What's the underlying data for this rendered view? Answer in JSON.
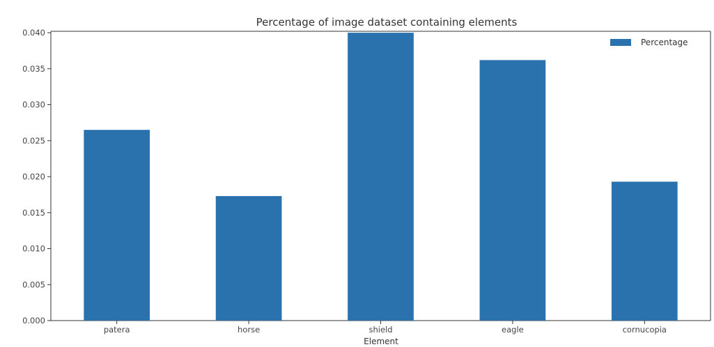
{
  "chart_data": {
    "type": "bar",
    "title": "Percentage of image dataset containing elements",
    "xlabel": "Element",
    "ylabel": "",
    "categories": [
      "patera",
      "horse",
      "shield",
      "eagle",
      "cornucopia"
    ],
    "series": [
      {
        "name": "Percentage",
        "values": [
          0.0265,
          0.0173,
          0.04,
          0.0362,
          0.0193
        ]
      }
    ],
    "yticks": [
      "0.000",
      "0.005",
      "0.010",
      "0.015",
      "0.020",
      "0.025",
      "0.030",
      "0.035",
      "0.040"
    ],
    "ylim": [
      0,
      0.0402
    ],
    "grid": false,
    "legend_position": "top-right",
    "bar_color": "#2a72ad"
  }
}
